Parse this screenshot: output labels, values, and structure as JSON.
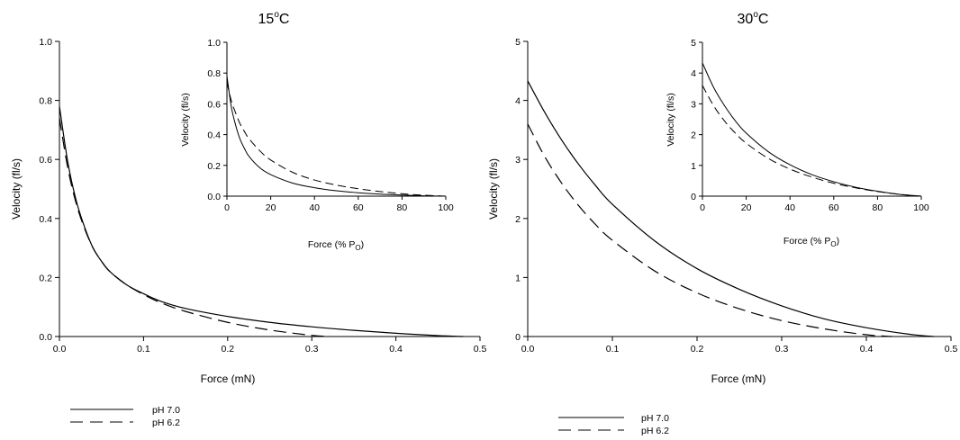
{
  "chart_data": [
    {
      "id": "left-main",
      "type": "line",
      "title": "15",
      "title_sup": "o",
      "title_suffix": "C",
      "xlabel": "Force (mN)",
      "ylabel": "Velocity (fl/s)",
      "xlim": [
        0,
        0.5
      ],
      "ylim": [
        0,
        1.0
      ],
      "xticks": [
        "0.0",
        "0.1",
        "0.2",
        "0.3",
        "0.4",
        "0.5"
      ],
      "yticks": [
        "0.0",
        "0.2",
        "0.4",
        "0.6",
        "0.8",
        "1.0"
      ],
      "grid": false,
      "series": [
        {
          "name": "pH 7.0",
          "style": "solid",
          "x": [
            0,
            0.01,
            0.02,
            0.03,
            0.04,
            0.05,
            0.06,
            0.08,
            0.1,
            0.12,
            0.15,
            0.2,
            0.25,
            0.3,
            0.35,
            0.4,
            0.45,
            0.48
          ],
          "y": [
            0.78,
            0.59,
            0.46,
            0.37,
            0.3,
            0.255,
            0.22,
            0.175,
            0.145,
            0.12,
            0.095,
            0.068,
            0.048,
            0.033,
            0.021,
            0.011,
            0.003,
            0
          ]
        },
        {
          "name": "pH 6.2",
          "style": "dashed",
          "x": [
            0,
            0.01,
            0.02,
            0.03,
            0.04,
            0.05,
            0.06,
            0.08,
            0.1,
            0.12,
            0.15,
            0.2,
            0.25,
            0.3,
            0.32
          ],
          "y": [
            0.74,
            0.57,
            0.45,
            0.365,
            0.3,
            0.255,
            0.22,
            0.175,
            0.142,
            0.115,
            0.085,
            0.048,
            0.022,
            0.004,
            0
          ]
        }
      ]
    },
    {
      "id": "left-inset",
      "type": "line",
      "xlabel": "Force (% P",
      "xlabel_sub": "O",
      "xlabel_suffix": ")",
      "ylabel": "Velocity (fl/s)",
      "xlim": [
        0,
        100
      ],
      "ylim": [
        0,
        1.0
      ],
      "xticks": [
        "0",
        "20",
        "40",
        "60",
        "80",
        "100"
      ],
      "yticks": [
        "0.0",
        "0.2",
        "0.4",
        "0.6",
        "0.8",
        "1.0"
      ],
      "grid": false,
      "series": [
        {
          "name": "pH 7.0",
          "style": "solid",
          "x": [
            0,
            2,
            4,
            6,
            8,
            10,
            15,
            20,
            30,
            40,
            50,
            60,
            70,
            80,
            90,
            100
          ],
          "y": [
            0.78,
            0.58,
            0.46,
            0.37,
            0.31,
            0.26,
            0.185,
            0.14,
            0.085,
            0.055,
            0.035,
            0.022,
            0.013,
            0.007,
            0.002,
            0
          ]
        },
        {
          "name": "pH 6.2",
          "style": "dashed",
          "x": [
            0,
            2,
            4,
            6,
            8,
            10,
            15,
            20,
            30,
            40,
            50,
            60,
            70,
            80,
            90,
            100
          ],
          "y": [
            0.74,
            0.62,
            0.54,
            0.47,
            0.42,
            0.375,
            0.295,
            0.235,
            0.155,
            0.105,
            0.072,
            0.048,
            0.03,
            0.016,
            0.006,
            0
          ]
        }
      ]
    },
    {
      "id": "right-main",
      "type": "line",
      "title": "30",
      "title_sup": "o",
      "title_suffix": "C",
      "xlabel": "Force (mN)",
      "ylabel": "Velocity (fl/s)",
      "xlim": [
        0,
        0.5
      ],
      "ylim": [
        0,
        5
      ],
      "xticks": [
        "0.0",
        "0.1",
        "0.2",
        "0.3",
        "0.4",
        "0.5"
      ],
      "yticks": [
        "0",
        "1",
        "2",
        "3",
        "4",
        "5"
      ],
      "grid": false,
      "series": [
        {
          "name": "pH 7.0",
          "style": "solid",
          "x": [
            0,
            0.02,
            0.04,
            0.06,
            0.08,
            0.1,
            0.15,
            0.2,
            0.25,
            0.3,
            0.35,
            0.4,
            0.45,
            0.48
          ],
          "y": [
            4.33,
            3.8,
            3.33,
            2.92,
            2.56,
            2.24,
            1.62,
            1.15,
            0.8,
            0.52,
            0.3,
            0.15,
            0.04,
            0
          ]
        },
        {
          "name": "pH 6.2",
          "style": "dashed",
          "x": [
            0,
            0.02,
            0.04,
            0.06,
            0.08,
            0.1,
            0.15,
            0.2,
            0.25,
            0.3,
            0.35,
            0.4,
            0.43
          ],
          "y": [
            3.6,
            3.05,
            2.6,
            2.22,
            1.9,
            1.63,
            1.11,
            0.74,
            0.47,
            0.27,
            0.13,
            0.03,
            0
          ]
        }
      ]
    },
    {
      "id": "right-inset",
      "type": "line",
      "xlabel": "Force (% P",
      "xlabel_sub": "O",
      "xlabel_suffix": ")",
      "ylabel": "Velocity (fl/s)",
      "xlim": [
        0,
        100
      ],
      "ylim": [
        0,
        5
      ],
      "xticks": [
        "0",
        "20",
        "40",
        "60",
        "80",
        "100"
      ],
      "yticks": [
        "0",
        "1",
        "2",
        "3",
        "4",
        "5"
      ],
      "grid": false,
      "series": [
        {
          "name": "pH 7.0",
          "style": "solid",
          "x": [
            0,
            5,
            10,
            15,
            20,
            30,
            40,
            50,
            60,
            70,
            80,
            90,
            100
          ],
          "y": [
            4.33,
            3.55,
            2.95,
            2.45,
            2.05,
            1.45,
            1.02,
            0.7,
            0.47,
            0.29,
            0.16,
            0.06,
            0
          ]
        },
        {
          "name": "pH 6.2",
          "style": "dashed",
          "x": [
            0,
            5,
            10,
            15,
            20,
            30,
            40,
            50,
            60,
            70,
            80,
            90,
            100
          ],
          "y": [
            3.6,
            2.95,
            2.45,
            2.05,
            1.72,
            1.23,
            0.88,
            0.62,
            0.42,
            0.27,
            0.15,
            0.06,
            0
          ]
        }
      ]
    }
  ],
  "legends": [
    {
      "placement": "bottom-left",
      "entries": [
        {
          "label": "pH 7.0",
          "style": "solid"
        },
        {
          "label": "pH 6.2",
          "style": "dashed"
        }
      ]
    },
    {
      "placement": "bottom-right",
      "entries": [
        {
          "label": "pH 7.0",
          "style": "solid"
        },
        {
          "label": "pH 6.2",
          "style": "dashed"
        }
      ]
    }
  ]
}
